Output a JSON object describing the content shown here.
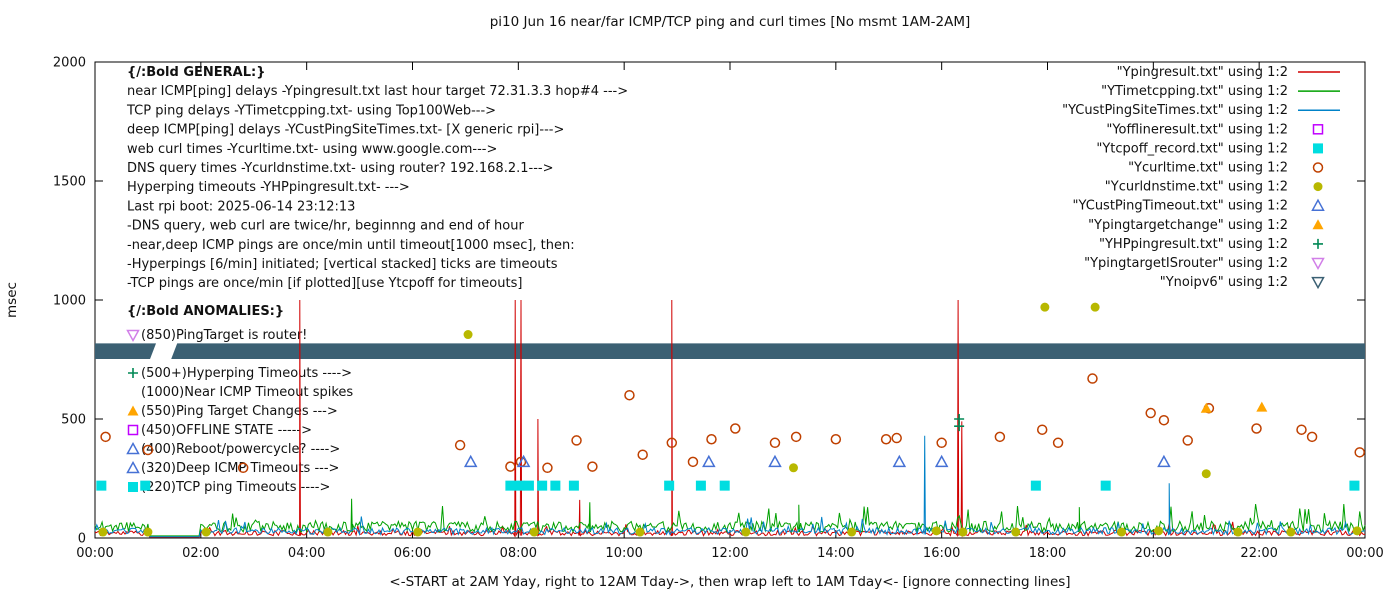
{
  "title": "pi10 Jun 16  near/far ICMP/TCP ping and curl times [No msmt 1AM-2AM]",
  "ylabel": "msec",
  "xlabel": "<-START at 2AM Yday, right to 12AM Tday->, then wrap left to 1AM Tday<- [ignore connecting lines]",
  "general_block": {
    "heading": "{/:Bold GENERAL:}",
    "lines": [
      "near ICMP[ping] delays -Ypingresult.txt last hour target 72.31.3.3 hop#4 --->",
      "TCP ping delays -YTimetcpping.txt- using Top100Web--->",
      "deep ICMP[ping] delays -YCustPingSiteTimes.txt- [X generic rpi]--->",
      "web curl times -Ycurltime.txt- using www.google.com--->",
      "DNS query times -Ycurldnstime.txt- using router? 192.168.2.1--->",
      "Hyperping timeouts -YHPpingresult.txt- --->",
      "Last rpi boot: 2025-06-14 23:12:13",
      "              -DNS query, web curl are twice/hr, beginnng and end of hour",
      "              -near,deep ICMP pings are once/min until timeout[1000 msec], then:",
      "                -Hyperpings [6/min] initiated; [vertical stacked] ticks are timeouts",
      "              -TCP pings are once/min [if plotted][use Ytcpoff for timeouts]"
    ]
  },
  "anomalies_block": {
    "heading": "{/:Bold ANOMALIES:}",
    "items": [
      {
        "marker": "tri-down-open",
        "color": "#d17fe8",
        "text": "(850)PingTarget is router!"
      },
      {
        "marker": "plus",
        "color": "#008855",
        "text": "(500+)Hyperping Timeouts ---->"
      },
      {
        "marker": "none",
        "color": "#000000",
        "text": "(1000)Near ICMP Timeout spikes"
      },
      {
        "marker": "triangle-filled",
        "color": "#ffa500",
        "text": "(550)Ping Target Changes --->"
      },
      {
        "marker": "square-open",
        "color": "#c000ff",
        "text": "(450)OFFLINE STATE ----->"
      },
      {
        "marker": "triangle-open",
        "color": "#4671d5",
        "text": "(400)Reboot/powercycle? ---->"
      },
      {
        "marker": "triangle-open",
        "color": "#4671d5",
        "text": "(320)Deep ICMP Timeouts --->"
      },
      {
        "marker": "square-filled",
        "color": "#00dde0",
        "text": "(220)TCP ping Timeouts ---->"
      }
    ]
  },
  "legend": [
    {
      "label": "\"Ypingresult.txt\" using 1:2",
      "sample": "line",
      "color": "#d00000"
    },
    {
      "label": "\"YTimetcpping.txt\" using 1:2",
      "sample": "line",
      "color": "#00a000"
    },
    {
      "label": "\"YCustPingSiteTimes.txt\" using 1:2",
      "sample": "line",
      "color": "#0082c8"
    },
    {
      "label": "\"Yofflineresult.txt\" using 1:2",
      "sample": "square-open",
      "color": "#c000ff"
    },
    {
      "label": "\"Ytcpoff_record.txt\" using 1:2",
      "sample": "square-filled",
      "color": "#00dde0"
    },
    {
      "label": "\"Ycurltime.txt\" using 1:2",
      "sample": "circle-open",
      "color": "#bf4000"
    },
    {
      "label": "\"Ycurldnstime.txt\" using 1:2",
      "sample": "circle-filled",
      "color": "#b8b800"
    },
    {
      "label": "\"YCustPingTimeout.txt\" using 1:2",
      "sample": "triangle-open",
      "color": "#4671d5"
    },
    {
      "label": "\"Ypingtargetchange\" using 1:2",
      "sample": "triangle-filled",
      "color": "#ffa500"
    },
    {
      "label": "\"YHPpingresult.txt\" using 1:2",
      "sample": "plus",
      "color": "#008855"
    },
    {
      "label": "\"YpingtargetISrouter\" using 1:2",
      "sample": "tri-down-open",
      "color": "#d17fe8"
    },
    {
      "label": "\"Ynoipv6\" using 1:2",
      "sample": "tri-down-open",
      "color": "#3b6073"
    }
  ],
  "chart_data": {
    "type": "line",
    "title": "pi10 Jun 16  near/far ICMP/TCP ping and curl times [No msmt 1AM-2AM]",
    "ylabel": "msec",
    "xlabel": "<-START at 2AM Yday, right to 12AM Tday->, then wrap left to 1AM Tday<- [ignore connecting lines]",
    "xlim_hours": [
      0,
      24
    ],
    "ylim": [
      0,
      2000
    ],
    "yticks": [
      0,
      500,
      1000,
      1500,
      2000
    ],
    "xticks": [
      {
        "h": 0,
        "label": "00:00"
      },
      {
        "h": 2,
        "label": "02:00"
      },
      {
        "h": 4,
        "label": "04:00"
      },
      {
        "h": 6,
        "label": "06:00"
      },
      {
        "h": 8,
        "label": "08:00"
      },
      {
        "h": 10,
        "label": "10:00"
      },
      {
        "h": 12,
        "label": "12:00"
      },
      {
        "h": 14,
        "label": "14:00"
      },
      {
        "h": 16,
        "label": "16:00"
      },
      {
        "h": 18,
        "label": "18:00"
      },
      {
        "h": 20,
        "label": "20:00"
      },
      {
        "h": 22,
        "label": "22:00"
      },
      {
        "h": 24,
        "label": "00:00"
      }
    ],
    "no_measurement_gap_hours": [
      1,
      2
    ],
    "series": [
      {
        "name": "Ypingresult.txt",
        "type": "noisy-line",
        "color": "#d00000",
        "baseline": 10,
        "noise": 22,
        "seed": 11,
        "spikes": [
          [
            3.87,
            1000
          ],
          [
            7.94,
            1000
          ],
          [
            8.05,
            1000
          ],
          [
            8.37,
            500
          ],
          [
            9.16,
            160
          ],
          [
            10.9,
            1000
          ],
          [
            16.31,
            1000
          ],
          [
            16.38,
            490
          ]
        ]
      },
      {
        "name": "YTimetcpping.txt",
        "type": "noisy-line",
        "color": "#00a000",
        "baseline": 25,
        "noise": 45,
        "seed": 22,
        "spikes": [
          [
            4.85,
            165
          ],
          [
            9.35,
            150
          ],
          [
            13.3,
            140
          ],
          [
            18.6,
            130
          ]
        ]
      },
      {
        "name": "YCustPingSiteTimes.txt",
        "type": "noisy-line",
        "color": "#0082c8",
        "baseline": 15,
        "noise": 28,
        "seed": 33,
        "spikes": [
          [
            15.68,
            430
          ],
          [
            20.3,
            230
          ]
        ]
      },
      {
        "name": "Yofflineresult.txt",
        "type": "scatter",
        "marker": "square-open",
        "color": "#c000ff",
        "points": []
      },
      {
        "name": "Ytcpoff_record.txt",
        "type": "scatter",
        "marker": "square-filled",
        "color": "#00dde0",
        "points": [
          [
            0.12,
            220
          ],
          [
            0.95,
            220
          ],
          [
            7.85,
            220
          ],
          [
            8.02,
            220
          ],
          [
            8.2,
            220
          ],
          [
            8.45,
            220
          ],
          [
            8.7,
            220
          ],
          [
            9.05,
            220
          ],
          [
            10.85,
            220
          ],
          [
            11.45,
            220
          ],
          [
            11.9,
            220
          ],
          [
            17.78,
            220
          ],
          [
            19.1,
            220
          ],
          [
            23.8,
            220
          ]
        ]
      },
      {
        "name": "Ycurltime.txt",
        "type": "scatter",
        "marker": "circle-open",
        "color": "#bf4000",
        "points": [
          [
            0.2,
            425
          ],
          [
            1.0,
            370
          ],
          [
            2.8,
            295
          ],
          [
            6.9,
            390
          ],
          [
            7.85,
            300
          ],
          [
            8.05,
            320
          ],
          [
            8.55,
            295
          ],
          [
            9.1,
            410
          ],
          [
            9.4,
            300
          ],
          [
            10.1,
            600
          ],
          [
            10.35,
            350
          ],
          [
            10.9,
            400
          ],
          [
            11.3,
            320
          ],
          [
            11.65,
            415
          ],
          [
            12.1,
            460
          ],
          [
            12.85,
            400
          ],
          [
            13.25,
            425
          ],
          [
            14.0,
            415
          ],
          [
            14.95,
            415
          ],
          [
            15.15,
            420
          ],
          [
            16.0,
            400
          ],
          [
            17.1,
            425
          ],
          [
            17.9,
            455
          ],
          [
            18.2,
            400
          ],
          [
            18.85,
            670
          ],
          [
            19.95,
            525
          ],
          [
            20.2,
            495
          ],
          [
            20.65,
            410
          ],
          [
            21.05,
            545
          ],
          [
            21.95,
            460
          ],
          [
            22.8,
            455
          ],
          [
            23.0,
            425
          ],
          [
            23.9,
            360
          ]
        ]
      },
      {
        "name": "Ycurldnstime.txt",
        "type": "scatter",
        "marker": "circle-filled",
        "color": "#b8b800",
        "points": [
          [
            0.15,
            25
          ],
          [
            1.0,
            25
          ],
          [
            2.1,
            25
          ],
          [
            4.4,
            25
          ],
          [
            6.1,
            25
          ],
          [
            7.05,
            855
          ],
          [
            8.3,
            25
          ],
          [
            10.3,
            25
          ],
          [
            12.3,
            25
          ],
          [
            13.2,
            295
          ],
          [
            14.3,
            25
          ],
          [
            15.9,
            30
          ],
          [
            16.4,
            25
          ],
          [
            17.4,
            25
          ],
          [
            17.95,
            970
          ],
          [
            18.9,
            970
          ],
          [
            19.4,
            25
          ],
          [
            20.1,
            30
          ],
          [
            21.0,
            270
          ],
          [
            21.6,
            25
          ],
          [
            22.6,
            25
          ],
          [
            23.85,
            30
          ]
        ]
      },
      {
        "name": "YCustPingTimeout.txt",
        "type": "scatter",
        "marker": "triangle-open",
        "color": "#4671d5",
        "points": [
          [
            7.1,
            320
          ],
          [
            8.1,
            320
          ],
          [
            11.6,
            320
          ],
          [
            12.85,
            320
          ],
          [
            15.2,
            320
          ],
          [
            16.0,
            320
          ],
          [
            20.2,
            320
          ]
        ]
      },
      {
        "name": "Ypingtargetchange",
        "type": "scatter",
        "marker": "triangle-filled",
        "color": "#ffa500",
        "points": [
          [
            21.0,
            545
          ],
          [
            22.05,
            550
          ]
        ]
      },
      {
        "name": "YHPpingresult.txt",
        "type": "scatter",
        "marker": "plus",
        "color": "#008855",
        "points": [
          [
            16.33,
            500
          ],
          [
            16.33,
            470
          ]
        ]
      },
      {
        "name": "YpingtargetISrouter",
        "type": "scatter",
        "marker": "tri-down-open",
        "color": "#d17fe8",
        "points": []
      },
      {
        "name": "Ynoipv6",
        "type": "band",
        "marker": "tri-down-open",
        "color": "#3b6073",
        "band": {
          "top_msec": 818,
          "bottom_msec": 752,
          "gap_hours": [
            1.04,
            1.44
          ]
        }
      }
    ]
  }
}
